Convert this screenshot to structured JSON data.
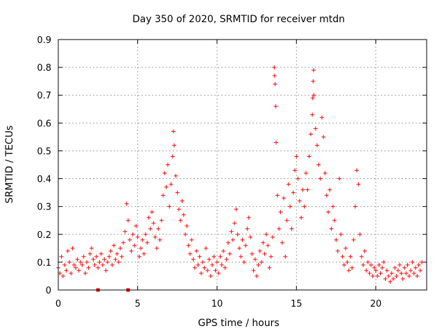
{
  "chart_data": {
    "type": "scatter",
    "title": "Day 350 of 2020, SRMTID for receiver mtdn",
    "xlabel": "GPS time / hours",
    "ylabel": "SRMTID / TECUs",
    "xlim": [
      0,
      23.2
    ],
    "ylim": [
      0,
      0.9
    ],
    "xticks": [
      0,
      5,
      10,
      15,
      20
    ],
    "xtick_labels": [
      "0",
      "5",
      "10",
      "15",
      "20"
    ],
    "yticks": [
      0,
      0.1,
      0.2,
      0.3,
      0.4,
      0.5,
      0.6,
      0.7,
      0.8,
      0.9
    ],
    "ytick_labels": [
      "0",
      "0.1",
      "0.2",
      "0.3",
      "0.4",
      "0.5",
      "0.6",
      "0.7",
      "0.8",
      "0.9"
    ],
    "grid": true,
    "marker": "plus",
    "color": "#ff0000",
    "series": [
      {
        "name": "SRMTID",
        "points": [
          [
            0.0,
            0.08
          ],
          [
            0.1,
            0.06
          ],
          [
            0.2,
            0.12
          ],
          [
            0.3,
            0.05
          ],
          [
            0.4,
            0.09
          ],
          [
            0.5,
            0.07
          ],
          [
            0.6,
            0.14
          ],
          [
            0.7,
            0.1
          ],
          [
            0.8,
            0.06
          ],
          [
            0.9,
            0.15
          ],
          [
            1.0,
            0.09
          ],
          [
            1.1,
            0.08
          ],
          [
            1.2,
            0.11
          ],
          [
            1.3,
            0.07
          ],
          [
            1.4,
            0.1
          ],
          [
            1.5,
            0.09
          ],
          [
            1.6,
            0.12
          ],
          [
            1.7,
            0.06
          ],
          [
            1.8,
            0.1
          ],
          [
            1.9,
            0.08
          ],
          [
            2.0,
            0.13
          ],
          [
            2.1,
            0.15
          ],
          [
            2.2,
            0.11
          ],
          [
            2.3,
            0.09
          ],
          [
            2.4,
            0.12
          ],
          [
            2.5,
            0.08
          ],
          [
            2.6,
            0.1
          ],
          [
            2.7,
            0.13
          ],
          [
            2.8,
            0.09
          ],
          [
            2.9,
            0.11
          ],
          [
            3.0,
            0.07
          ],
          [
            3.1,
            0.1
          ],
          [
            3.2,
            0.12
          ],
          [
            3.3,
            0.14
          ],
          [
            3.4,
            0.09
          ],
          [
            3.5,
            0.16
          ],
          [
            3.6,
            0.11
          ],
          [
            3.7,
            0.13
          ],
          [
            3.8,
            0.1
          ],
          [
            3.9,
            0.15
          ],
          [
            4.0,
            0.12
          ],
          [
            4.1,
            0.17
          ],
          [
            4.2,
            0.21
          ],
          [
            4.3,
            0.31
          ],
          [
            4.4,
            0.25
          ],
          [
            4.5,
            0.18
          ],
          [
            4.6,
            0.14
          ],
          [
            4.7,
            0.2
          ],
          [
            4.8,
            0.16
          ],
          [
            4.9,
            0.23
          ],
          [
            5.0,
            0.19
          ],
          [
            5.1,
            0.12
          ],
          [
            5.2,
            0.15
          ],
          [
            5.3,
            0.18
          ],
          [
            5.4,
            0.13
          ],
          [
            5.5,
            0.2
          ],
          [
            5.6,
            0.17
          ],
          [
            5.7,
            0.26
          ],
          [
            5.8,
            0.22
          ],
          [
            5.9,
            0.28
          ],
          [
            6.0,
            0.24
          ],
          [
            6.1,
            0.19
          ],
          [
            6.2,
            0.15
          ],
          [
            6.3,
            0.22
          ],
          [
            6.4,
            0.18
          ],
          [
            6.5,
            0.25
          ],
          [
            6.6,
            0.34
          ],
          [
            6.7,
            0.42
          ],
          [
            6.8,
            0.37
          ],
          [
            6.9,
            0.45
          ],
          [
            7.0,
            0.3
          ],
          [
            7.1,
            0.38
          ],
          [
            7.2,
            0.48
          ],
          [
            7.25,
            0.57
          ],
          [
            7.3,
            0.52
          ],
          [
            7.4,
            0.41
          ],
          [
            7.5,
            0.35
          ],
          [
            7.6,
            0.29
          ],
          [
            7.7,
            0.25
          ],
          [
            7.8,
            0.32
          ],
          [
            7.9,
            0.27
          ],
          [
            8.0,
            0.2
          ],
          [
            8.1,
            0.23
          ],
          [
            8.2,
            0.16
          ],
          [
            8.3,
            0.13
          ],
          [
            8.4,
            0.18
          ],
          [
            8.5,
            0.11
          ],
          [
            8.6,
            0.08
          ],
          [
            8.7,
            0.14
          ],
          [
            8.8,
            0.09
          ],
          [
            8.9,
            0.12
          ],
          [
            9.0,
            0.06
          ],
          [
            9.1,
            0.1
          ],
          [
            9.2,
            0.08
          ],
          [
            9.3,
            0.15
          ],
          [
            9.4,
            0.07
          ],
          [
            9.5,
            0.11
          ],
          [
            9.6,
            0.05
          ],
          [
            9.7,
            0.09
          ],
          [
            9.8,
            0.12
          ],
          [
            9.9,
            0.07
          ],
          [
            10.0,
            0.1
          ],
          [
            10.1,
            0.06
          ],
          [
            10.2,
            0.12
          ],
          [
            10.3,
            0.09
          ],
          [
            10.4,
            0.14
          ],
          [
            10.5,
            0.08
          ],
          [
            10.6,
            0.11
          ],
          [
            10.7,
            0.17
          ],
          [
            10.8,
            0.13
          ],
          [
            10.9,
            0.21
          ],
          [
            11.0,
            0.18
          ],
          [
            11.1,
            0.24
          ],
          [
            11.2,
            0.29
          ],
          [
            11.3,
            0.2
          ],
          [
            11.4,
            0.15
          ],
          [
            11.5,
            0.12
          ],
          [
            11.6,
            0.18
          ],
          [
            11.7,
            0.1
          ],
          [
            11.8,
            0.16
          ],
          [
            11.9,
            0.22
          ],
          [
            12.0,
            0.26
          ],
          [
            12.1,
            0.19
          ],
          [
            12.2,
            0.13
          ],
          [
            12.3,
            0.07
          ],
          [
            12.4,
            0.11
          ],
          [
            12.5,
            0.05
          ],
          [
            12.6,
            0.09
          ],
          [
            12.7,
            0.14
          ],
          [
            12.8,
            0.1
          ],
          [
            12.9,
            0.17
          ],
          [
            13.0,
            0.13
          ],
          [
            13.1,
            0.2
          ],
          [
            13.2,
            0.16
          ],
          [
            13.3,
            0.08
          ],
          [
            13.4,
            0.12
          ],
          [
            13.5,
            0.19
          ],
          [
            13.6,
            0.8
          ],
          [
            13.62,
            0.77
          ],
          [
            13.65,
            0.74
          ],
          [
            13.7,
            0.66
          ],
          [
            13.72,
            0.53
          ],
          [
            13.8,
            0.34
          ],
          [
            13.9,
            0.22
          ],
          [
            14.0,
            0.28
          ],
          [
            14.1,
            0.17
          ],
          [
            14.2,
            0.33
          ],
          [
            14.3,
            0.12
          ],
          [
            14.4,
            0.25
          ],
          [
            14.5,
            0.38
          ],
          [
            14.6,
            0.3
          ],
          [
            14.7,
            0.22
          ],
          [
            14.8,
            0.35
          ],
          [
            14.9,
            0.43
          ],
          [
            15.0,
            0.48
          ],
          [
            15.1,
            0.4
          ],
          [
            15.2,
            0.32
          ],
          [
            15.3,
            0.26
          ],
          [
            15.4,
            0.36
          ],
          [
            15.5,
            0.3
          ],
          [
            15.6,
            0.42
          ],
          [
            15.7,
            0.36
          ],
          [
            15.8,
            0.48
          ],
          [
            15.9,
            0.56
          ],
          [
            16.0,
            0.63
          ],
          [
            16.02,
            0.69
          ],
          [
            16.05,
            0.75
          ],
          [
            16.08,
            0.79
          ],
          [
            16.1,
            0.7
          ],
          [
            16.2,
            0.58
          ],
          [
            16.3,
            0.52
          ],
          [
            16.4,
            0.45
          ],
          [
            16.5,
            0.4
          ],
          [
            16.6,
            0.62
          ],
          [
            16.7,
            0.55
          ],
          [
            16.8,
            0.42
          ],
          [
            16.9,
            0.34
          ],
          [
            17.0,
            0.28
          ],
          [
            17.1,
            0.36
          ],
          [
            17.2,
            0.22
          ],
          [
            17.3,
            0.3
          ],
          [
            17.4,
            0.25
          ],
          [
            17.5,
            0.18
          ],
          [
            17.6,
            0.14
          ],
          [
            17.7,
            0.4
          ],
          [
            17.8,
            0.2
          ],
          [
            17.9,
            0.12
          ],
          [
            18.0,
            0.09
          ],
          [
            18.1,
            0.15
          ],
          [
            18.2,
            0.1
          ],
          [
            18.3,
            0.07
          ],
          [
            18.4,
            0.12
          ],
          [
            18.5,
            0.08
          ],
          [
            18.6,
            0.18
          ],
          [
            18.7,
            0.3
          ],
          [
            18.8,
            0.43
          ],
          [
            18.9,
            0.38
          ],
          [
            19.0,
            0.2
          ],
          [
            19.1,
            0.12
          ],
          [
            19.2,
            0.09
          ],
          [
            19.3,
            0.14
          ],
          [
            19.4,
            0.07
          ],
          [
            19.5,
            0.1
          ],
          [
            19.6,
            0.06
          ],
          [
            19.7,
            0.09
          ],
          [
            19.8,
            0.05
          ],
          [
            19.9,
            0.08
          ],
          [
            20.0,
            0.07
          ],
          [
            20.1,
            0.05
          ],
          [
            20.2,
            0.09
          ],
          [
            20.3,
            0.06
          ],
          [
            20.4,
            0.08
          ],
          [
            20.5,
            0.1
          ],
          [
            20.6,
            0.04
          ],
          [
            20.7,
            0.07
          ],
          [
            20.8,
            0.05
          ],
          [
            20.9,
            0.03
          ],
          [
            21.0,
            0.06
          ],
          [
            21.1,
            0.04
          ],
          [
            21.2,
            0.08
          ],
          [
            21.3,
            0.05
          ],
          [
            21.4,
            0.07
          ],
          [
            21.5,
            0.09
          ],
          [
            21.6,
            0.06
          ],
          [
            21.7,
            0.04
          ],
          [
            21.8,
            0.08
          ],
          [
            21.9,
            0.06
          ],
          [
            22.0,
            0.09
          ],
          [
            22.1,
            0.05
          ],
          [
            22.2,
            0.07
          ],
          [
            22.3,
            0.1
          ],
          [
            22.4,
            0.06
          ],
          [
            22.5,
            0.08
          ],
          [
            22.6,
            0.05
          ],
          [
            22.7,
            0.09
          ],
          [
            22.8,
            0.07
          ],
          [
            22.9,
            0.1
          ]
        ]
      }
    ],
    "flag_markers": [
      {
        "x": 2.5,
        "y": 0
      },
      {
        "x": 4.4,
        "y": 0
      }
    ]
  }
}
